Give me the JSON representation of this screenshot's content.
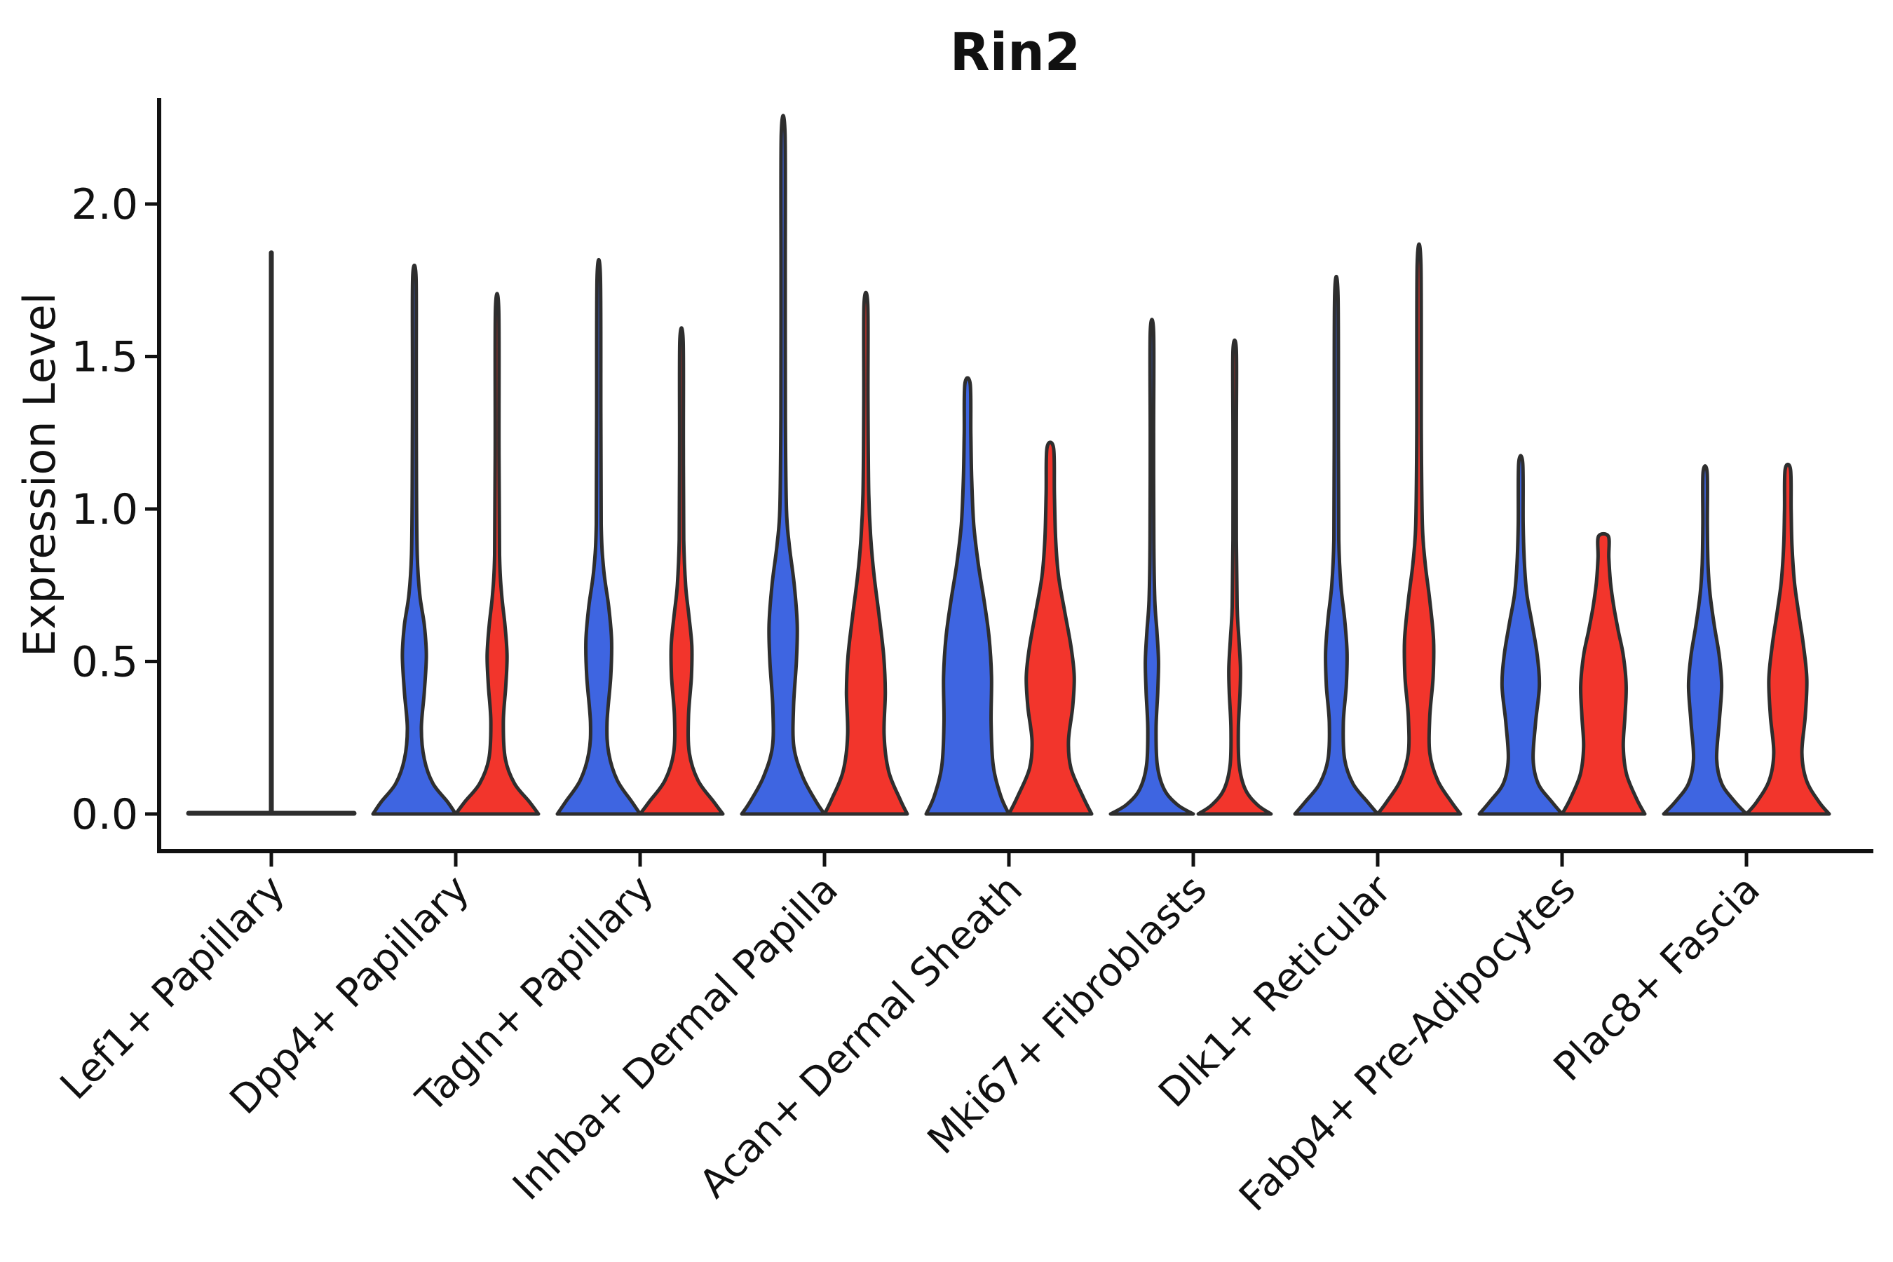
{
  "chart_data": {
    "type": "violin",
    "title": "Rin2",
    "ylabel": "Expression Level",
    "xlabel": "",
    "yticks": [
      "0.0",
      "0.5",
      "1.0",
      "1.5",
      "2.0"
    ],
    "ytick_values": [
      0.0,
      0.5,
      1.0,
      1.5,
      2.0
    ],
    "ylim": [
      -0.12,
      2.35
    ],
    "grid": "off",
    "legend": "none",
    "background_color": "#ffffff",
    "axis_color": "#111111",
    "outline_color": "#2e2e2e",
    "split_colors": {
      "left": "#3e65e1",
      "right": "#f2352c"
    },
    "categories": [
      "Lef1+ Papillary",
      "Dpp4+ Papillary",
      "Tagln+ Papillary",
      "Inhba+ Dermal Papilla",
      "Acan+ Dermal Sheath",
      "Mki67+ Fibroblasts",
      "Dlk1+ Reticular",
      "Fabp4+ Pre-Adipocytes",
      "Plac8+ Fascia"
    ],
    "violins": [
      {
        "category": "Lef1+ Papillary",
        "collapsed": true,
        "spike_max": 1.84,
        "left": null,
        "right": null
      },
      {
        "category": "Dpp4+ Papillary",
        "left": {
          "color": "blue",
          "max": 1.76,
          "profile": [
            [
              0,
              1
            ],
            [
              0.04,
              0.8
            ],
            [
              0.1,
              0.45
            ],
            [
              0.18,
              0.24
            ],
            [
              0.28,
              0.17
            ],
            [
              0.4,
              0.24
            ],
            [
              0.52,
              0.29
            ],
            [
              0.62,
              0.24
            ],
            [
              0.72,
              0.13
            ],
            [
              0.85,
              0.07
            ],
            [
              1.1,
              0.05
            ],
            [
              1.45,
              0.045
            ],
            [
              1.76,
              0.04
            ]
          ]
        },
        "right": {
          "color": "red",
          "max": 1.65,
          "profile": [
            [
              0,
              1
            ],
            [
              0.04,
              0.78
            ],
            [
              0.1,
              0.42
            ],
            [
              0.18,
              0.2
            ],
            [
              0.3,
              0.15
            ],
            [
              0.42,
              0.21
            ],
            [
              0.52,
              0.24
            ],
            [
              0.62,
              0.19
            ],
            [
              0.72,
              0.11
            ],
            [
              0.85,
              0.06
            ],
            [
              1.2,
              0.045
            ],
            [
              1.65,
              0.04
            ]
          ]
        }
      },
      {
        "category": "Tagln+ Papillary",
        "left": {
          "color": "blue",
          "max": 1.76,
          "profile": [
            [
              0,
              1
            ],
            [
              0.04,
              0.8
            ],
            [
              0.11,
              0.45
            ],
            [
              0.2,
              0.24
            ],
            [
              0.3,
              0.2
            ],
            [
              0.45,
              0.29
            ],
            [
              0.57,
              0.31
            ],
            [
              0.68,
              0.24
            ],
            [
              0.8,
              0.12
            ],
            [
              0.95,
              0.06
            ],
            [
              1.3,
              0.05
            ],
            [
              1.76,
              0.04
            ]
          ]
        },
        "right": {
          "color": "red",
          "max": 1.55,
          "profile": [
            [
              0,
              1
            ],
            [
              0.04,
              0.78
            ],
            [
              0.11,
              0.4
            ],
            [
              0.2,
              0.19
            ],
            [
              0.32,
              0.17
            ],
            [
              0.45,
              0.24
            ],
            [
              0.55,
              0.25
            ],
            [
              0.65,
              0.18
            ],
            [
              0.75,
              0.1
            ],
            [
              0.9,
              0.055
            ],
            [
              1.2,
              0.045
            ],
            [
              1.55,
              0.04
            ]
          ]
        }
      },
      {
        "category": "Inhba+ Dermal Papilla",
        "left": {
          "color": "blue",
          "max": 2.23,
          "profile": [
            [
              0,
              1
            ],
            [
              0.04,
              0.8
            ],
            [
              0.12,
              0.48
            ],
            [
              0.22,
              0.26
            ],
            [
              0.35,
              0.25
            ],
            [
              0.5,
              0.32
            ],
            [
              0.62,
              0.34
            ],
            [
              0.75,
              0.27
            ],
            [
              0.88,
              0.15
            ],
            [
              1.0,
              0.08
            ],
            [
              1.3,
              0.055
            ],
            [
              1.75,
              0.05
            ],
            [
              2.23,
              0.045
            ]
          ]
        },
        "right": {
          "color": "red",
          "max": 1.67,
          "profile": [
            [
              0,
              1
            ],
            [
              0.05,
              0.82
            ],
            [
              0.14,
              0.55
            ],
            [
              0.26,
              0.44
            ],
            [
              0.4,
              0.47
            ],
            [
              0.52,
              0.43
            ],
            [
              0.65,
              0.32
            ],
            [
              0.78,
              0.2
            ],
            [
              0.9,
              0.12
            ],
            [
              1.05,
              0.07
            ],
            [
              1.35,
              0.05
            ],
            [
              1.67,
              0.045
            ]
          ]
        }
      },
      {
        "category": "Acan+ Dermal Sheath",
        "left": {
          "color": "blue",
          "max": 1.41,
          "profile": [
            [
              0,
              1
            ],
            [
              0.06,
              0.8
            ],
            [
              0.16,
              0.62
            ],
            [
              0.3,
              0.57
            ],
            [
              0.45,
              0.58
            ],
            [
              0.58,
              0.52
            ],
            [
              0.7,
              0.4
            ],
            [
              0.82,
              0.26
            ],
            [
              0.95,
              0.15
            ],
            [
              1.1,
              0.1
            ],
            [
              1.25,
              0.08
            ],
            [
              1.41,
              0.065
            ]
          ]
        },
        "right": {
          "color": "red",
          "max": 1.2,
          "profile": [
            [
              0,
              1
            ],
            [
              0.06,
              0.78
            ],
            [
              0.15,
              0.5
            ],
            [
              0.24,
              0.44
            ],
            [
              0.35,
              0.54
            ],
            [
              0.45,
              0.58
            ],
            [
              0.55,
              0.5
            ],
            [
              0.67,
              0.34
            ],
            [
              0.78,
              0.2
            ],
            [
              0.9,
              0.13
            ],
            [
              1.05,
              0.1
            ],
            [
              1.2,
              0.08
            ]
          ]
        }
      },
      {
        "category": "Mki67+ Fibroblasts",
        "left": {
          "color": "blue",
          "max": 1.58,
          "profile": [
            [
              0,
              1
            ],
            [
              0.03,
              0.62
            ],
            [
              0.08,
              0.3
            ],
            [
              0.16,
              0.13
            ],
            [
              0.28,
              0.1
            ],
            [
              0.4,
              0.14
            ],
            [
              0.5,
              0.16
            ],
            [
              0.6,
              0.12
            ],
            [
              0.7,
              0.07
            ],
            [
              0.9,
              0.045
            ],
            [
              1.25,
              0.04
            ],
            [
              1.58,
              0.035
            ]
          ]
        },
        "right": {
          "color": "red",
          "max": 1.52,
          "profile": [
            [
              0,
              0.88
            ],
            [
              0.03,
              0.55
            ],
            [
              0.08,
              0.26
            ],
            [
              0.16,
              0.11
            ],
            [
              0.28,
              0.09
            ],
            [
              0.4,
              0.13
            ],
            [
              0.48,
              0.14
            ],
            [
              0.58,
              0.1
            ],
            [
              0.68,
              0.06
            ],
            [
              0.9,
              0.04
            ],
            [
              1.25,
              0.035
            ],
            [
              1.52,
              0.035
            ]
          ]
        }
      },
      {
        "category": "Dlk1+ Reticular",
        "left": {
          "color": "blue",
          "max": 1.7,
          "profile": [
            [
              0,
              1
            ],
            [
              0.04,
              0.75
            ],
            [
              0.1,
              0.4
            ],
            [
              0.18,
              0.2
            ],
            [
              0.3,
              0.17
            ],
            [
              0.42,
              0.24
            ],
            [
              0.53,
              0.26
            ],
            [
              0.64,
              0.2
            ],
            [
              0.75,
              0.11
            ],
            [
              0.9,
              0.06
            ],
            [
              1.2,
              0.05
            ],
            [
              1.7,
              0.04
            ]
          ]
        },
        "right": {
          "color": "red",
          "max": 1.8,
          "profile": [
            [
              0,
              1
            ],
            [
              0.04,
              0.78
            ],
            [
              0.11,
              0.45
            ],
            [
              0.2,
              0.26
            ],
            [
              0.32,
              0.26
            ],
            [
              0.45,
              0.34
            ],
            [
              0.57,
              0.35
            ],
            [
              0.7,
              0.26
            ],
            [
              0.82,
              0.15
            ],
            [
              0.95,
              0.08
            ],
            [
              1.25,
              0.055
            ],
            [
              1.8,
              0.045
            ]
          ]
        }
      },
      {
        "category": "Fabp4+ Pre-Adipocytes",
        "left": {
          "color": "blue",
          "max": 1.15,
          "profile": [
            [
              0,
              1
            ],
            [
              0.04,
              0.75
            ],
            [
              0.1,
              0.42
            ],
            [
              0.18,
              0.3
            ],
            [
              0.3,
              0.36
            ],
            [
              0.42,
              0.45
            ],
            [
              0.52,
              0.4
            ],
            [
              0.62,
              0.28
            ],
            [
              0.72,
              0.15
            ],
            [
              0.82,
              0.09
            ],
            [
              0.95,
              0.06
            ],
            [
              1.15,
              0.05
            ]
          ]
        },
        "right": {
          "color": "red",
          "max": 0.91,
          "profile": [
            [
              0,
              1
            ],
            [
              0.05,
              0.8
            ],
            [
              0.13,
              0.56
            ],
            [
              0.22,
              0.48
            ],
            [
              0.32,
              0.52
            ],
            [
              0.42,
              0.55
            ],
            [
              0.52,
              0.48
            ],
            [
              0.6,
              0.36
            ],
            [
              0.68,
              0.25
            ],
            [
              0.76,
              0.17
            ],
            [
              0.84,
              0.13
            ],
            [
              0.91,
              0.12
            ]
          ]
        }
      },
      {
        "category": "Plac8+ Fascia",
        "left": {
          "color": "blue",
          "max": 1.12,
          "profile": [
            [
              0,
              1
            ],
            [
              0.04,
              0.72
            ],
            [
              0.1,
              0.4
            ],
            [
              0.18,
              0.28
            ],
            [
              0.3,
              0.34
            ],
            [
              0.42,
              0.4
            ],
            [
              0.52,
              0.34
            ],
            [
              0.62,
              0.22
            ],
            [
              0.72,
              0.12
            ],
            [
              0.82,
              0.07
            ],
            [
              0.95,
              0.055
            ],
            [
              1.12,
              0.05
            ]
          ]
        },
        "right": {
          "color": "red",
          "max": 1.13,
          "profile": [
            [
              0,
              1
            ],
            [
              0.04,
              0.75
            ],
            [
              0.11,
              0.45
            ],
            [
              0.2,
              0.34
            ],
            [
              0.32,
              0.42
            ],
            [
              0.44,
              0.46
            ],
            [
              0.55,
              0.38
            ],
            [
              0.66,
              0.26
            ],
            [
              0.76,
              0.16
            ],
            [
              0.88,
              0.1
            ],
            [
              1.0,
              0.08
            ],
            [
              1.13,
              0.065
            ]
          ]
        }
      }
    ]
  }
}
